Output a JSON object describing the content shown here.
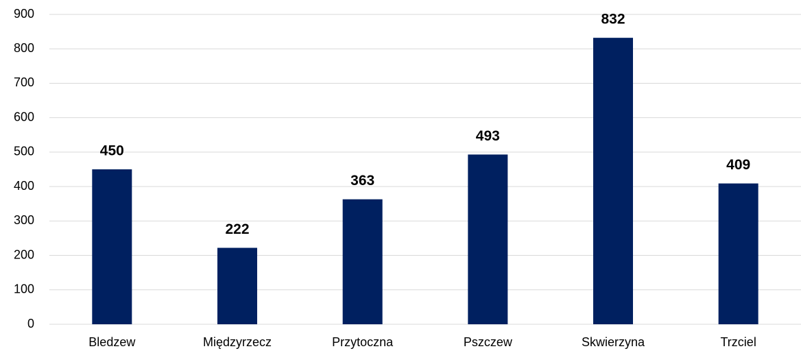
{
  "chart_data": {
    "type": "bar",
    "categories": [
      "Bledzew",
      "Międzyrzecz",
      "Przytoczna",
      "Pszczew",
      "Skwierzyna",
      "Trzciel"
    ],
    "values": [
      450,
      222,
      363,
      493,
      832,
      409
    ],
    "color": "#002060",
    "ylim": [
      0,
      900
    ],
    "yticks": [
      0,
      100,
      200,
      300,
      400,
      500,
      600,
      700,
      800,
      900
    ],
    "grid": true
  }
}
